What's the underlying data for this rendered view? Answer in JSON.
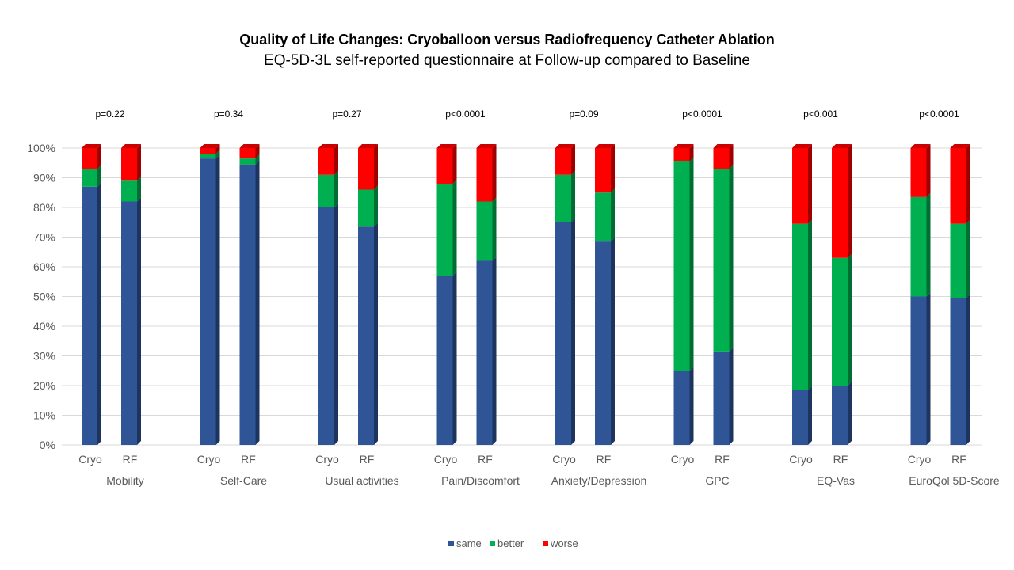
{
  "chart_data": {
    "type": "bar",
    "stacked": true,
    "title": "Quality of Life Changes: Cryoballoon versus Radiofrequency Catheter Ablation",
    "subtitle": "EQ-5D-3L self-reported questionnaire at Follow-up compared to Baseline",
    "groups": [
      "Mobility",
      "Self-Care",
      "Usual activities",
      "Pain/Discomfort",
      "Anxiety/Depression",
      "GPC",
      "EQ-Vas",
      "EuroQol 5D-Score"
    ],
    "subcategories": [
      "Cryo",
      "RF"
    ],
    "p_values": [
      "p=0.22",
      "p=0.34",
      "p=0.27",
      "p<0.0001",
      "p=0.09",
      "p<0.0001",
      "p<0.001",
      "p<0.0001"
    ],
    "series": [
      {
        "name": "same",
        "color": "#2F5597",
        "values": [
          87,
          82,
          96.5,
          94.5,
          80,
          73.5,
          57,
          62,
          75,
          68.5,
          25,
          31.5,
          18.5,
          20,
          50,
          49.5
        ]
      },
      {
        "name": "better",
        "color": "#00B050",
        "values": [
          6,
          7,
          1.5,
          2,
          11,
          12.5,
          31,
          20,
          16,
          16.5,
          70.5,
          61.5,
          56,
          43,
          33.5,
          25
        ]
      },
      {
        "name": "worse",
        "color": "#FF0000",
        "values": [
          7,
          11,
          2,
          3.5,
          9,
          14,
          12,
          18,
          9,
          15,
          4.5,
          7,
          25.5,
          37,
          16.5,
          25.5
        ]
      }
    ],
    "ylim": [
      0,
      100
    ],
    "yticks": [
      "0%",
      "10%",
      "20%",
      "30%",
      "40%",
      "50%",
      "60%",
      "70%",
      "80%",
      "90%",
      "100%"
    ],
    "grid": true,
    "legend_position": "bottom"
  }
}
